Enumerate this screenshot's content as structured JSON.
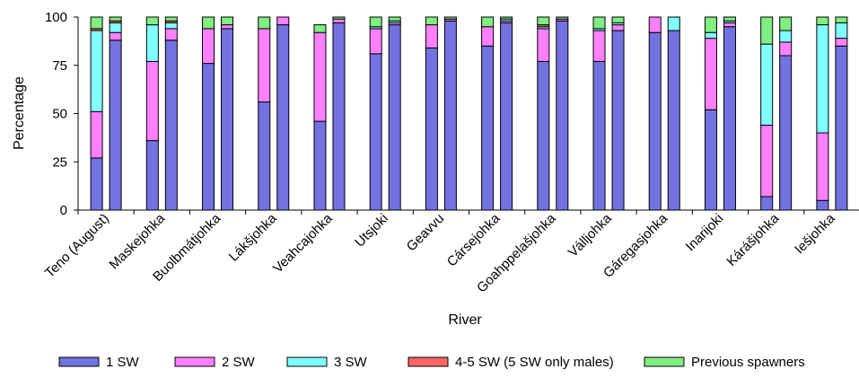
{
  "chart_data": {
    "type": "bar",
    "stacked": true,
    "bars_per_category": 2,
    "title": "",
    "xlabel": "River",
    "ylabel": "Percentage",
    "ylim": [
      0,
      100
    ],
    "yticks": [
      0,
      25,
      50,
      75,
      100
    ],
    "legend_position": "bottom",
    "categories": [
      "Teno (August)",
      "Maskejohka",
      "Buolbmátjohka",
      "Lákšjohka",
      "Veahcajohka",
      "Utsjoki",
      "Geavvu",
      "Cársejohka",
      "Goahppelašjohka",
      "Válljohka",
      "Gáregasjohka",
      "Inarijoki",
      "Kárášjohka",
      "Iešjohka"
    ],
    "series": [
      {
        "name": "1 SW",
        "color": "#7272E0",
        "values": [
          [
            27,
            88
          ],
          [
            36,
            88
          ],
          [
            76,
            94
          ],
          [
            56,
            96
          ],
          [
            46,
            97
          ],
          [
            81,
            96
          ],
          [
            84,
            98
          ],
          [
            85,
            97
          ],
          [
            77,
            98
          ],
          [
            77,
            93
          ],
          [
            92,
            93
          ],
          [
            52,
            95
          ],
          [
            7,
            80
          ],
          [
            5,
            85
          ]
        ]
      },
      {
        "name": "2 SW",
        "color": "#FF80FF",
        "values": [
          [
            24,
            4
          ],
          [
            41,
            6
          ],
          [
            18,
            2
          ],
          [
            38,
            4
          ],
          [
            46,
            2
          ],
          [
            13,
            1
          ],
          [
            12,
            1
          ],
          [
            10,
            1
          ],
          [
            17,
            1
          ],
          [
            16,
            3
          ],
          [
            8,
            0
          ],
          [
            37,
            2
          ],
          [
            37,
            7
          ],
          [
            35,
            4
          ]
        ]
      },
      {
        "name": "3 SW",
        "color": "#80FFFF",
        "values": [
          [
            42,
            5
          ],
          [
            19,
            3
          ],
          [
            0,
            0
          ],
          [
            0,
            0
          ],
          [
            0,
            0
          ],
          [
            1,
            1
          ],
          [
            0,
            0
          ],
          [
            0,
            1
          ],
          [
            1,
            0
          ],
          [
            1,
            1
          ],
          [
            0,
            7
          ],
          [
            3,
            1
          ],
          [
            42,
            6
          ],
          [
            56,
            8
          ]
        ]
      },
      {
        "name": "4-5 SW (5 SW only males)",
        "color": "#FF6666",
        "values": [
          [
            1,
            1
          ],
          [
            0,
            1
          ],
          [
            0,
            0
          ],
          [
            0,
            0
          ],
          [
            0,
            0
          ],
          [
            0,
            0
          ],
          [
            0,
            0
          ],
          [
            0,
            0
          ],
          [
            1,
            0
          ],
          [
            0,
            0
          ],
          [
            0,
            0
          ],
          [
            0,
            0
          ],
          [
            0,
            0
          ],
          [
            0,
            0
          ]
        ]
      },
      {
        "name": "Previous spawners",
        "color": "#80EE80",
        "values": [
          [
            6,
            2
          ],
          [
            4,
            2
          ],
          [
            6,
            4
          ],
          [
            6,
            0
          ],
          [
            4,
            1
          ],
          [
            5,
            2
          ],
          [
            4,
            1
          ],
          [
            5,
            1
          ],
          [
            4,
            1
          ],
          [
            6,
            3
          ],
          [
            0,
            0
          ],
          [
            8,
            2
          ],
          [
            14,
            7
          ],
          [
            4,
            3
          ]
        ]
      }
    ]
  }
}
